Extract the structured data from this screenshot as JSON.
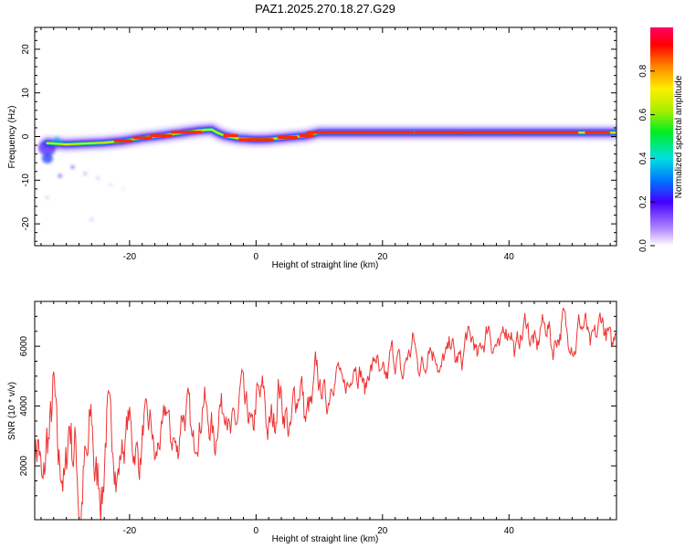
{
  "title": "PAZ1.2025.270.18.27.G29",
  "chart_data": [
    {
      "type": "heatmap",
      "name": "spectrogram",
      "xlabel": "Height of straight line (km)",
      "ylabel": "Frequency (Hz)",
      "xlim": [
        -35,
        57
      ],
      "ylim": [
        -25,
        25
      ],
      "xticks": [
        -20,
        0,
        20,
        40
      ],
      "yticks": [
        -20,
        -10,
        0,
        10,
        20
      ],
      "ridge": {
        "x": [
          -33,
          -30,
          -27,
          -24,
          -21,
          -18,
          -15,
          -12,
          -9,
          -7,
          -6,
          -5,
          -3,
          0,
          2,
          5,
          8,
          10,
          15,
          20,
          25,
          30,
          35,
          40,
          45,
          50,
          55,
          57
        ],
        "freq": [
          -1.5,
          -1.8,
          -1.6,
          -1.4,
          -1.0,
          -0.3,
          0.2,
          0.8,
          1.4,
          1.6,
          0.8,
          0.2,
          -0.4,
          -0.7,
          -0.6,
          -0.2,
          0.2,
          0.9,
          0.9,
          0.9,
          0.9,
          0.9,
          0.9,
          0.9,
          0.9,
          0.9,
          0.9,
          0.9
        ]
      },
      "colorbar": {
        "label": "Normalized spectral amplitude",
        "range": [
          0,
          1
        ],
        "ticks": [
          "0.0",
          "0.2",
          "0.4",
          "0.6",
          "0.8"
        ],
        "tick_values": [
          0.0,
          0.2,
          0.4,
          0.6,
          0.8
        ]
      }
    },
    {
      "type": "line",
      "name": "snr",
      "xlabel": "Height of straight line (km)",
      "ylabel": "SNR (10 * v/v)",
      "xlim": [
        -35,
        57
      ],
      "ylim": [
        200,
        7500
      ],
      "xticks": [
        -20,
        0,
        20,
        40
      ],
      "yticks": [
        2000,
        4000,
        6000
      ],
      "series_color": "#ee3333",
      "trend": {
        "x": [
          -35,
          -32,
          -28,
          -25,
          -20,
          -15,
          -10,
          -5,
          0,
          5,
          10,
          15,
          20,
          25,
          30,
          35,
          40,
          45,
          50,
          57
        ],
        "y": [
          2200,
          3000,
          1800,
          2200,
          2800,
          3000,
          3400,
          3600,
          3900,
          3800,
          4500,
          5000,
          5200,
          5700,
          5600,
          6100,
          6300,
          6400,
          6400,
          6500
        ]
      }
    }
  ]
}
